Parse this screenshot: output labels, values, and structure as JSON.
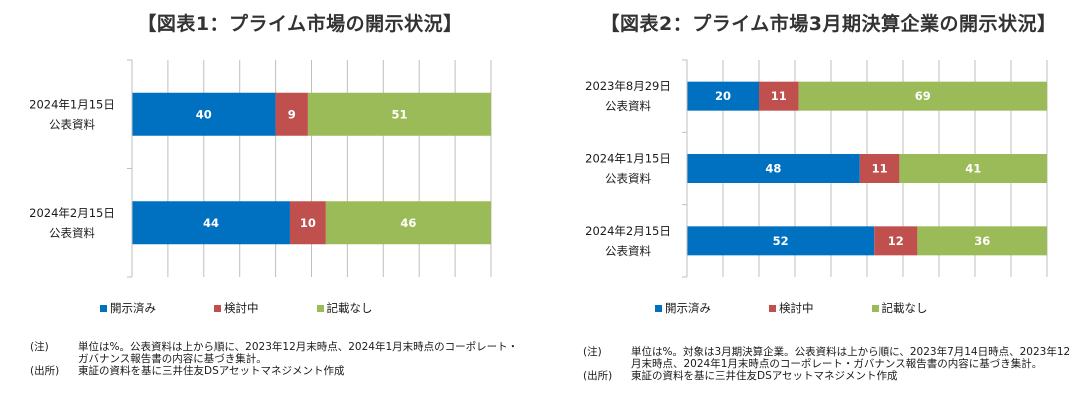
{
  "colors": {
    "open": "#0070c0",
    "considering": "#c0504d",
    "none": "#9bbb59",
    "axis": "#bfbfbf"
  },
  "chart_data": [
    {
      "type": "bar",
      "orientation": "horizontal",
      "stacked": true,
      "title": "【図表1：プライム市場の開示状況】",
      "categories": [
        [
          "2024年1月15日",
          "公表資料"
        ],
        [
          "2024年2月15日",
          "公表資料"
        ]
      ],
      "series": [
        {
          "name": "開示済み",
          "values": [
            40,
            44
          ]
        },
        {
          "name": "検討中",
          "values": [
            9,
            10
          ]
        },
        {
          "name": "記載なし",
          "values": [
            51,
            46
          ]
        }
      ],
      "xlim": [
        0,
        100
      ],
      "grid": true,
      "legend": "bottom"
    },
    {
      "type": "bar",
      "orientation": "horizontal",
      "stacked": true,
      "title": "【図表2：プライム市場3月期決算企業の開示状況】",
      "categories": [
        [
          "2023年8月29日",
          "公表資料"
        ],
        [
          "2024年1月15日",
          "公表資料"
        ],
        [
          "2024年2月15日",
          "公表資料"
        ]
      ],
      "series": [
        {
          "name": "開示済み",
          "values": [
            20,
            48,
            52
          ]
        },
        {
          "name": "検討中",
          "values": [
            11,
            11,
            12
          ]
        },
        {
          "name": "記載なし",
          "values": [
            69,
            41,
            36
          ]
        }
      ],
      "xlim": [
        0,
        100
      ],
      "grid": true,
      "legend": "bottom"
    }
  ],
  "notes": [
    [
      {
        "tag": "(注)",
        "text": "単位は%。公表資料は上から順に、2023年12月末時点、2024年1月末時点のコーポレート・ガバナンス報告書の内容に基づき集計。"
      },
      {
        "tag": "(出所)",
        "text": "東証の資料を基に三井住友DSアセットマネジメント作成"
      }
    ],
    [
      {
        "tag": "(注)",
        "text": "単位は%。対象は3月期決算企業。公表資料は上から順に、2023年7月14日時点、2023年12月末時点、2024年1月末時点のコーポレート・ガバナンス報告書の内容に基づき集計。"
      },
      {
        "tag": "(出所)",
        "text": "東証の資料を基に三井住友DSアセットマネジメント作成"
      }
    ]
  ]
}
